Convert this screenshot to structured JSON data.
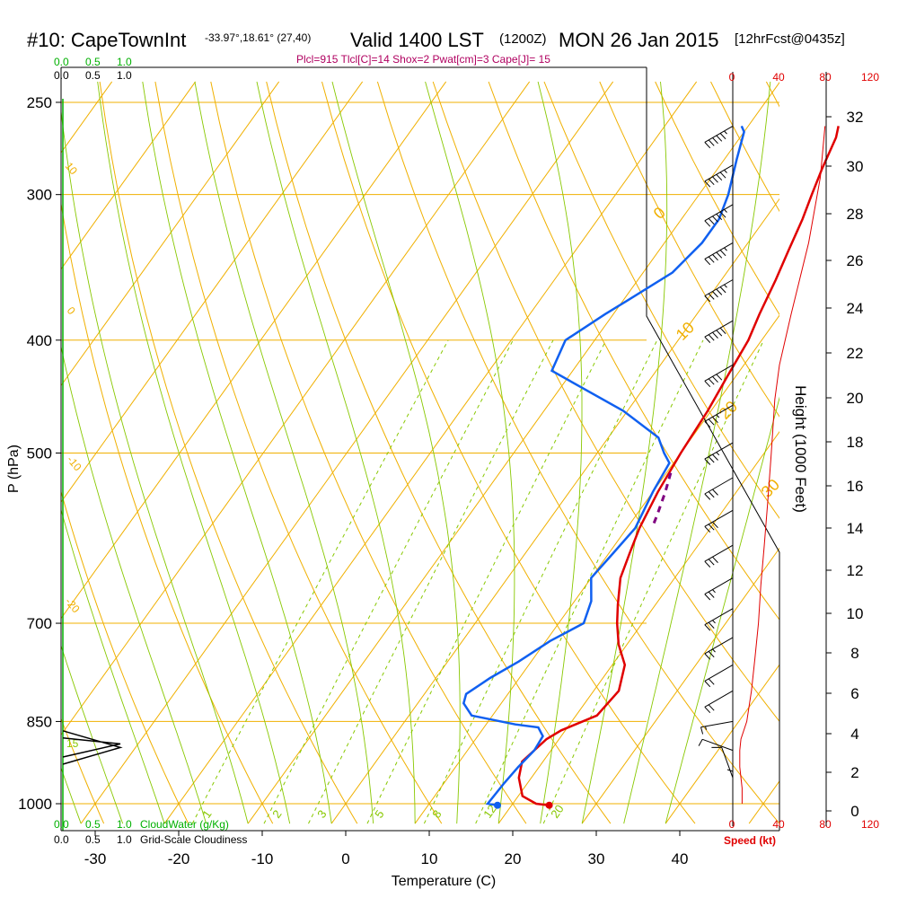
{
  "title": {
    "station": "#10: CapeTownInt",
    "coords": "-33.97°,18.61° (27,40)",
    "valid": "Valid 1400 LST",
    "zulu": "(1200Z)",
    "date": "MON 26 Jan 2015",
    "forecast": "[12hrFcst@0435z]"
  },
  "params_line": "Plcl=915 Tlcl[C]=14 Shox=2 Pwat[cm]=3 Cape[J]= 15",
  "colors": {
    "isotherm": "#f0b000",
    "dry_adiabat": "#f0b000",
    "moist_adiabat": "#88c800",
    "mixing_ratio": "#88c800",
    "temperature": "#e00000",
    "dewpoint": "#1060f0",
    "parcel": "#800080",
    "cloud": "#00b000",
    "speed": "#e00000"
  },
  "top_scale": {
    "cloud_water": [
      "0.0",
      "0.5",
      "1.0"
    ],
    "cloudiness": [
      "0.0",
      "0.5",
      "1.0"
    ]
  },
  "bottom_scale": {
    "cloud_water": [
      "0.0",
      "0.5",
      "1.0"
    ],
    "cloud_water_label": "CloudWater (g/Kg)",
    "cloudiness": [
      "0.0",
      "0.5",
      "1.0"
    ],
    "cloudiness_label": "Grid-Scale Cloudiness"
  },
  "speed_axis": {
    "ticks": [
      "0",
      "40",
      "80",
      "120"
    ],
    "label": "Speed (kt)"
  },
  "chart_data": {
    "type": "line",
    "xlabel": "Temperature (C)",
    "ylabel": "P (hPa)",
    "y2label": "Height (1000 Feet)",
    "xlim": [
      -35,
      45
    ],
    "ylim_hpa": [
      1020,
      250
    ],
    "x_ticks": [
      "-30",
      "-20",
      "-10",
      "0",
      "10",
      "20",
      "30",
      "40"
    ],
    "p_ticks": [
      "250",
      "300",
      "400",
      "500",
      "700",
      "850",
      "1000"
    ],
    "p_values": [
      250,
      300,
      400,
      500,
      700,
      850,
      1000
    ],
    "height_ticks": [
      "0",
      "2",
      "4",
      "6",
      "8",
      "10",
      "12",
      "14",
      "16",
      "18",
      "20",
      "22",
      "24",
      "26",
      "28",
      "30",
      "32"
    ],
    "dry_adiabat_labels": [
      "0",
      "10",
      "20",
      "30"
    ],
    "moist_labels": [
      "10",
      "0",
      "-10",
      "-20"
    ],
    "mixing_ratio_labels": [
      "1",
      "2",
      "3",
      "5",
      "8",
      "12",
      "20"
    ],
    "series": [
      {
        "name": "Temperature",
        "points": [
          [
            24.5,
            1003
          ],
          [
            22.8,
            1000
          ],
          [
            20.5,
            985
          ],
          [
            18.5,
            950
          ],
          [
            17.5,
            920
          ],
          [
            18.5,
            880
          ],
          [
            19.5,
            865
          ],
          [
            22.5,
            840
          ],
          [
            23.0,
            800
          ],
          [
            21.5,
            760
          ],
          [
            19.0,
            730
          ],
          [
            17.0,
            700
          ],
          [
            15.5,
            675
          ],
          [
            13.5,
            640
          ],
          [
            12.5,
            610
          ],
          [
            11.5,
            580
          ],
          [
            10.6,
            540
          ],
          [
            10.0,
            500
          ],
          [
            9.6,
            460
          ],
          [
            9.0,
            430
          ],
          [
            8.4,
            400
          ],
          [
            7.5,
            380
          ],
          [
            6.5,
            355
          ],
          [
            5.5,
            335
          ],
          [
            4.5,
            315
          ],
          [
            3.5,
            300
          ],
          [
            2.5,
            285
          ],
          [
            1.5,
            268
          ],
          [
            0.8,
            262
          ]
        ]
      },
      {
        "name": "Dewpoint",
        "points": [
          [
            18.3,
            1003
          ],
          [
            17.0,
            1000
          ],
          [
            17.2,
            960
          ],
          [
            17.5,
            930
          ],
          [
            18.0,
            900
          ],
          [
            17.8,
            875
          ],
          [
            16.5,
            860
          ],
          [
            13.5,
            855
          ],
          [
            7.5,
            840
          ],
          [
            5.5,
            820
          ],
          [
            5.0,
            805
          ],
          [
            6.5,
            780
          ],
          [
            8.5,
            755
          ],
          [
            10.5,
            725
          ],
          [
            13.0,
            700
          ],
          [
            12.0,
            670
          ],
          [
            10.0,
            640
          ],
          [
            10.5,
            610
          ],
          [
            11.0,
            580
          ],
          [
            10.0,
            540
          ],
          [
            9.5,
            510
          ],
          [
            8.0,
            500
          ],
          [
            6.0,
            485
          ],
          [
            -0.5,
            460
          ],
          [
            -12.5,
            425
          ],
          [
            -13.5,
            400
          ],
          [
            -11.0,
            380
          ],
          [
            -9.5,
            370
          ],
          [
            -6.5,
            350
          ],
          [
            -5.5,
            330
          ],
          [
            -5.5,
            315
          ],
          [
            -6.5,
            300
          ],
          [
            -8.5,
            280
          ],
          [
            -10.0,
            265
          ],
          [
            -10.8,
            262
          ]
        ]
      },
      {
        "name": "Parcel",
        "points": [
          [
            10.5,
            520
          ],
          [
            11.5,
            540
          ],
          [
            12.5,
            565
          ],
          [
            13.0,
            580
          ]
        ]
      }
    ],
    "cloud_bar": {
      "p_top": 915,
      "p_bottom": 875,
      "value": 1.0
    },
    "speed_profile_kt": [
      [
        8,
        1000
      ],
      [
        8,
        970
      ],
      [
        6,
        930
      ],
      [
        6,
        900
      ],
      [
        7,
        880
      ],
      [
        12,
        850
      ],
      [
        16,
        800
      ],
      [
        19,
        750
      ],
      [
        22,
        700
      ],
      [
        24,
        650
      ],
      [
        27,
        600
      ],
      [
        30,
        550
      ],
      [
        33,
        500
      ],
      [
        36,
        450
      ],
      [
        40,
        420
      ],
      [
        50,
        380
      ],
      [
        65,
        330
      ],
      [
        75,
        290
      ],
      [
        79,
        262
      ]
    ],
    "wind_barbs": [
      {
        "p": 262,
        "dir": 300,
        "kt": 55
      },
      {
        "p": 283,
        "dir": 300,
        "kt": 55
      },
      {
        "p": 306,
        "dir": 300,
        "kt": 55
      },
      {
        "p": 330,
        "dir": 300,
        "kt": 55
      },
      {
        "p": 355,
        "dir": 300,
        "kt": 55
      },
      {
        "p": 385,
        "dir": 300,
        "kt": 50
      },
      {
        "p": 420,
        "dir": 300,
        "kt": 40
      },
      {
        "p": 455,
        "dir": 300,
        "kt": 35
      },
      {
        "p": 490,
        "dir": 300,
        "kt": 35
      },
      {
        "p": 525,
        "dir": 300,
        "kt": 30
      },
      {
        "p": 560,
        "dir": 300,
        "kt": 30
      },
      {
        "p": 600,
        "dir": 300,
        "kt": 30
      },
      {
        "p": 640,
        "dir": 300,
        "kt": 25
      },
      {
        "p": 680,
        "dir": 300,
        "kt": 25
      },
      {
        "p": 720,
        "dir": 300,
        "kt": 25
      },
      {
        "p": 760,
        "dir": 300,
        "kt": 20
      },
      {
        "p": 800,
        "dir": 300,
        "kt": 20
      },
      {
        "p": 850,
        "dir": 280,
        "kt": 15
      },
      {
        "p": 900,
        "dir": 250,
        "kt": 10
      },
      {
        "p": 950,
        "dir": 200,
        "kt": 10
      },
      {
        "p": 1000,
        "dir": 180,
        "kt": 5
      }
    ]
  }
}
